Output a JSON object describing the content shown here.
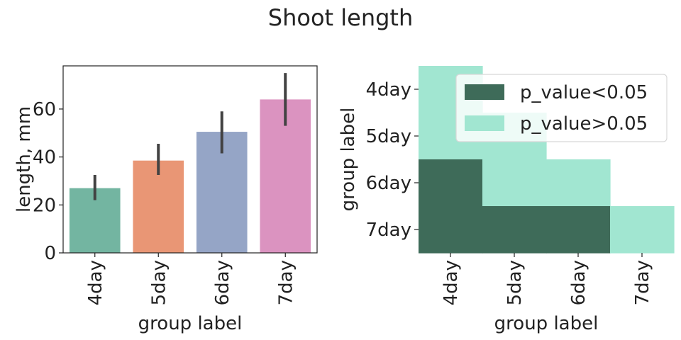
{
  "figure": {
    "title": "Shoot length"
  },
  "chart_data": [
    {
      "type": "bar",
      "categories": [
        "4day",
        "5day",
        "6day",
        "7day"
      ],
      "values": [
        27,
        38.5,
        50.5,
        64
      ],
      "error_low": [
        22,
        32.5,
        41.5,
        53
      ],
      "error_high": [
        32.5,
        45.5,
        59,
        75
      ],
      "colors": [
        "#73b5a1",
        "#e99675",
        "#95a5c6",
        "#db93c0"
      ],
      "xlabel": "group label",
      "ylabel": "length, mm",
      "ylim": [
        0,
        78
      ],
      "yticks": [
        0,
        20,
        40,
        60
      ],
      "grid": false
    },
    {
      "type": "heatmap",
      "rows": [
        "4day",
        "5day",
        "6day",
        "7day"
      ],
      "columns": [
        "4day",
        "5day",
        "6day",
        "7day"
      ],
      "matrix": [
        [
          "p_value>0.05",
          null,
          null,
          null
        ],
        [
          "p_value>0.05",
          "p_value>0.05",
          null,
          null
        ],
        [
          "p_value<0.05",
          "p_value>0.05",
          "p_value>0.05",
          null
        ],
        [
          "p_value<0.05",
          "p_value<0.05",
          "p_value<0.05",
          "p_value>0.05"
        ]
      ],
      "xlabel": "group label",
      "ylabel": "group label",
      "legend": {
        "placement": "upper-right",
        "entries": [
          {
            "label": "p_value<0.05",
            "color": "#3e6b59"
          },
          {
            "label": "p_value>0.05",
            "color": "#a1e6d1"
          }
        ]
      }
    }
  ]
}
